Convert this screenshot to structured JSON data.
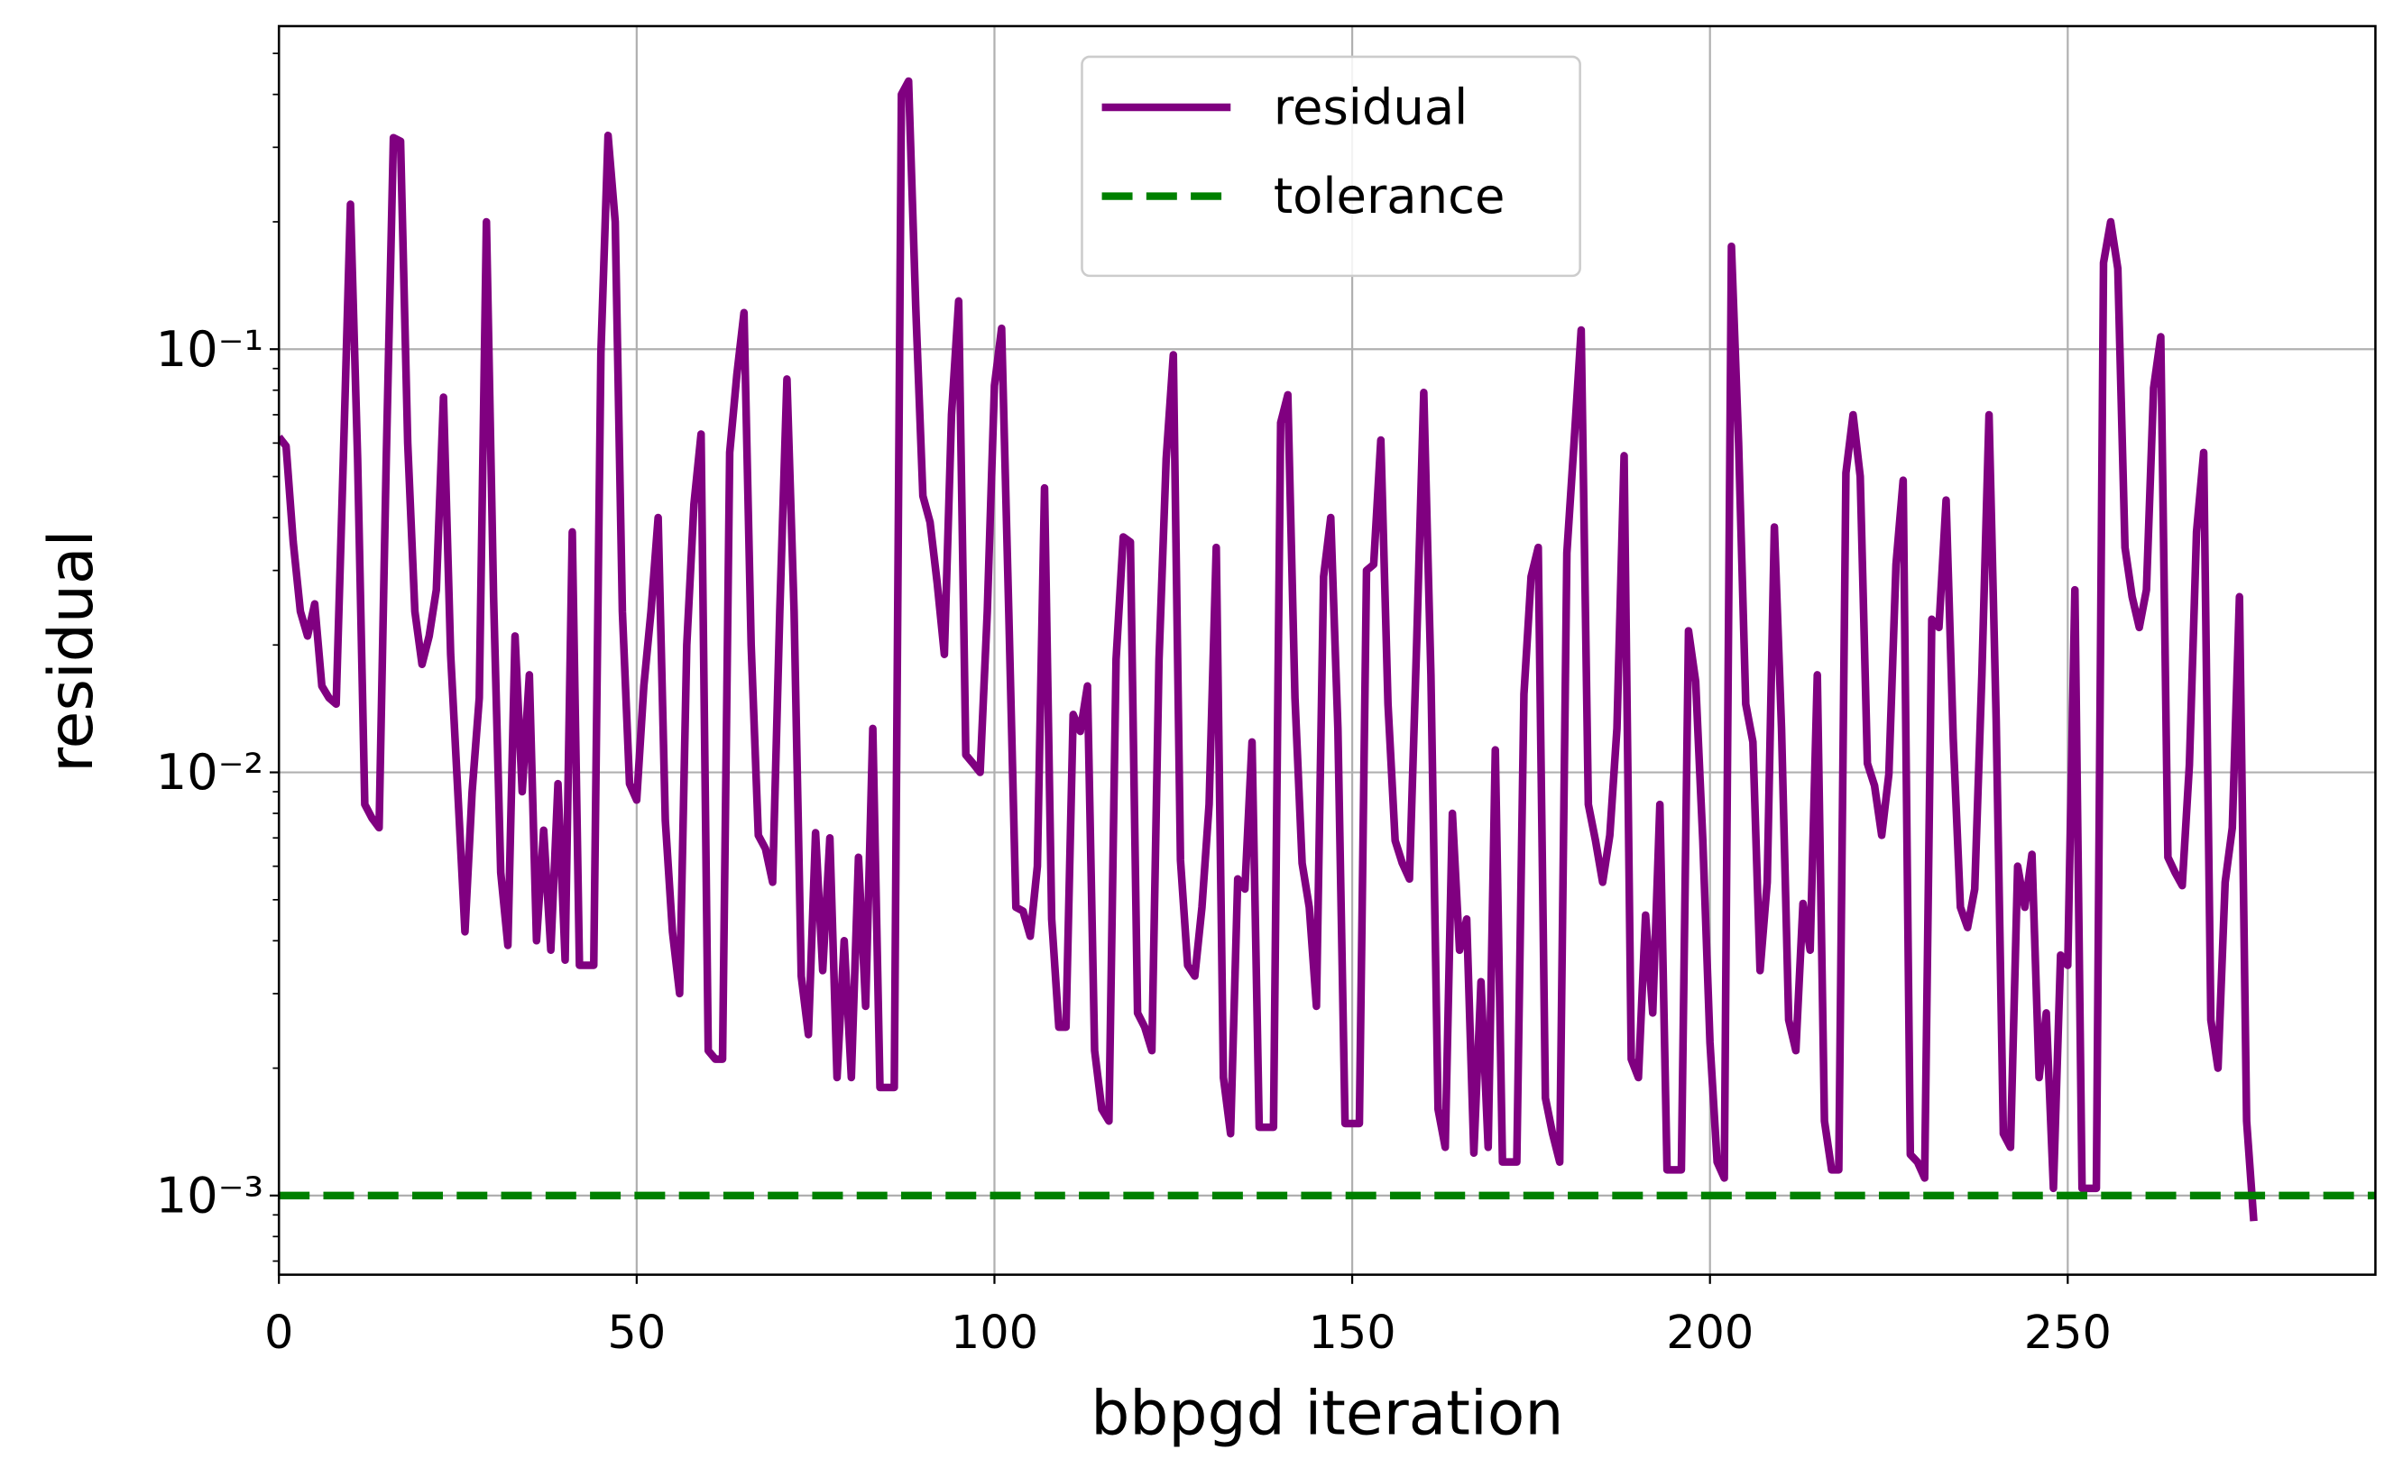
{
  "chart_data": {
    "type": "line",
    "x_label": "bbpgd iteration",
    "y_label": "residual",
    "xlim": [
      0,
      293
    ],
    "xticks": [
      0,
      50,
      100,
      150,
      200,
      250
    ],
    "ylim": [
      0.00065,
      0.58
    ],
    "log_y": true,
    "yticks": [
      {
        "value": 0.001,
        "label": "10⁻³"
      },
      {
        "value": 0.01,
        "label": "10⁻²"
      },
      {
        "value": 0.1,
        "label": "10⁻¹"
      }
    ],
    "yminorticks": [
      0.0007,
      0.0008,
      0.0009,
      0.002,
      0.003,
      0.004,
      0.005,
      0.006,
      0.007,
      0.008,
      0.009,
      0.02,
      0.03,
      0.04,
      0.05,
      0.06,
      0.07,
      0.08,
      0.09,
      0.2,
      0.3,
      0.4,
      0.5
    ],
    "grid": true,
    "legend": "upper center",
    "series": [
      {
        "name": "residual",
        "color": "#800080",
        "values": [
          0.062,
          0.059,
          0.035,
          0.024,
          0.021,
          0.025,
          0.016,
          0.015,
          0.0145,
          0.055,
          0.22,
          0.055,
          0.0084,
          0.0078,
          0.0074,
          0.055,
          0.316,
          0.31,
          0.06,
          0.024,
          0.018,
          0.021,
          0.027,
          0.077,
          0.019,
          0.009,
          0.0042,
          0.009,
          0.015,
          0.2,
          0.026,
          0.0058,
          0.0039,
          0.021,
          0.009,
          0.017,
          0.004,
          0.0073,
          0.0038,
          0.0094,
          0.0036,
          0.037,
          0.0035,
          0.0035,
          0.0035,
          0.098,
          0.32,
          0.2,
          0.024,
          0.0094,
          0.0086,
          0.016,
          0.024,
          0.04,
          0.0077,
          0.0042,
          0.003,
          0.02,
          0.043,
          0.063,
          0.0022,
          0.0021,
          0.0021,
          0.057,
          0.087,
          0.122,
          0.02,
          0.0071,
          0.0066,
          0.0055,
          0.024,
          0.085,
          0.024,
          0.0033,
          0.0024,
          0.0072,
          0.0034,
          0.007,
          0.0019,
          0.004,
          0.0019,
          0.0063,
          0.0028,
          0.0127,
          0.0018,
          0.0018,
          0.0018,
          0.4,
          0.43,
          0.126,
          0.045,
          0.039,
          0.028,
          0.019,
          0.07,
          0.13,
          0.011,
          0.0105,
          0.01,
          0.024,
          0.082,
          0.112,
          0.024,
          0.0048,
          0.0047,
          0.0041,
          0.006,
          0.047,
          0.0045,
          0.0025,
          0.0025,
          0.0137,
          0.0125,
          0.016,
          0.0022,
          0.0016,
          0.0015,
          0.0185,
          0.036,
          0.035,
          0.0027,
          0.0025,
          0.0022,
          0.0185,
          0.055,
          0.097,
          0.0062,
          0.0035,
          0.0033,
          0.0048,
          0.0084,
          0.034,
          0.0019,
          0.0014,
          0.0056,
          0.0053,
          0.0118,
          0.00145,
          0.00145,
          0.00145,
          0.067,
          0.078,
          0.015,
          0.0061,
          0.0048,
          0.0028,
          0.029,
          0.04,
          0.0127,
          0.00148,
          0.00148,
          0.00148,
          0.03,
          0.031,
          0.061,
          0.0145,
          0.0069,
          0.0061,
          0.0056,
          0.02,
          0.079,
          0.017,
          0.0016,
          0.0013,
          0.008,
          0.0038,
          0.0045,
          0.00126,
          0.0032,
          0.0013,
          0.0113,
          0.0012,
          0.0012,
          0.0012,
          0.0153,
          0.029,
          0.034,
          0.0017,
          0.0014,
          0.0012,
          0.033,
          0.06,
          0.111,
          0.0084,
          0.0069,
          0.0055,
          0.0071,
          0.0127,
          0.056,
          0.0021,
          0.0019,
          0.0046,
          0.0027,
          0.0084,
          0.00115,
          0.00115,
          0.00115,
          0.0216,
          0.0164,
          0.0069,
          0.0023,
          0.0012,
          0.0011,
          0.175,
          0.06,
          0.0145,
          0.0118,
          0.0034,
          0.0055,
          0.038,
          0.0127,
          0.0026,
          0.0022,
          0.0049,
          0.0038,
          0.017,
          0.0015,
          0.00115,
          0.00115,
          0.051,
          0.07,
          0.05,
          0.0105,
          0.0093,
          0.0071,
          0.0099,
          0.031,
          0.049,
          0.00125,
          0.0012,
          0.0011,
          0.023,
          0.022,
          0.044,
          0.012,
          0.0048,
          0.0043,
          0.0053,
          0.017,
          0.07,
          0.0133,
          0.0014,
          0.0013,
          0.006,
          0.0048,
          0.0064,
          0.0019,
          0.0027,
          0.00104,
          0.0037,
          0.0035,
          0.027,
          0.00104,
          0.00104,
          0.00104,
          0.16,
          0.2,
          0.155,
          0.034,
          0.026,
          0.022,
          0.027,
          0.081,
          0.107,
          0.0063,
          0.0058,
          0.0054,
          0.0104,
          0.037,
          0.057,
          0.0026,
          0.002,
          0.0055,
          0.0074,
          0.026,
          0.0015,
          0.00087
        ]
      },
      {
        "name": "tolerance",
        "color": "#008000",
        "dashed": true,
        "hline": 0.001
      }
    ]
  }
}
